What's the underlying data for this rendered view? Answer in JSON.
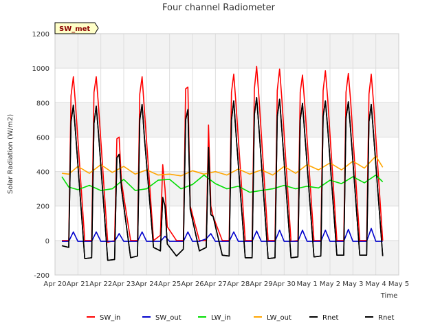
{
  "chart_data": {
    "type": "line",
    "title": "Four channel Radiometer",
    "xlabel": "Time",
    "ylabel": "Solar Radiation (W/m2)",
    "site_badge": "SW_met",
    "ylim": [
      -200,
      1200
    ],
    "xlim": [
      0,
      15
    ],
    "y_ticks": [
      -200,
      0,
      200,
      400,
      600,
      800,
      1000,
      1200
    ],
    "x_ticks": [
      {
        "pos": 0,
        "label": "Apr 20"
      },
      {
        "pos": 1,
        "label": "Apr 21"
      },
      {
        "pos": 2,
        "label": "Apr 22"
      },
      {
        "pos": 3,
        "label": "Apr 23"
      },
      {
        "pos": 4,
        "label": "Apr 24"
      },
      {
        "pos": 5,
        "label": "Apr 25"
      },
      {
        "pos": 6,
        "label": "Apr 26"
      },
      {
        "pos": 7,
        "label": "Apr 27"
      },
      {
        "pos": 8,
        "label": "Apr 28"
      },
      {
        "pos": 9,
        "label": "Apr 29"
      },
      {
        "pos": 10,
        "label": "Apr 30"
      },
      {
        "pos": 11,
        "label": "May 1"
      },
      {
        "pos": 12,
        "label": "May 2"
      },
      {
        "pos": 13,
        "label": "May 3"
      },
      {
        "pos": 14,
        "label": "May 4"
      },
      {
        "pos": 15,
        "label": "May 5"
      }
    ],
    "grid": true,
    "banded_background": true,
    "legend_position": "bottom",
    "series": [
      {
        "name": "SW_in",
        "color": "#ff0000",
        "x": [
          0.3,
          0.6,
          0.7,
          0.8,
          0.9,
          1.3,
          1.6,
          1.7,
          1.8,
          1.9,
          2.3,
          2.6,
          2.7,
          2.8,
          2.9,
          3.3,
          3.6,
          3.7,
          3.8,
          3.9,
          4.3,
          4.6,
          4.7,
          4.8,
          4.9,
          5.3,
          5.6,
          5.7,
          5.8,
          5.9,
          6.3,
          6.6,
          6.7,
          6.8,
          6.9,
          7.3,
          7.6,
          7.7,
          7.8,
          7.9,
          8.3,
          8.6,
          8.7,
          8.8,
          8.9,
          9.3,
          9.6,
          9.7,
          9.8,
          9.9,
          10.3,
          10.6,
          10.7,
          10.8,
          10.9,
          11.3,
          11.6,
          11.7,
          11.8,
          11.9,
          12.3,
          12.6,
          12.7,
          12.8,
          12.9,
          13.3,
          13.6,
          13.7,
          13.8,
          13.9,
          14.3
        ],
        "y": [
          0,
          0,
          840,
          950,
          780,
          0,
          0,
          860,
          950,
          780,
          -10,
          0,
          590,
          600,
          340,
          0,
          0,
          850,
          950,
          760,
          0,
          30,
          440,
          300,
          80,
          0,
          0,
          880,
          890,
          200,
          0,
          0,
          670,
          200,
          140,
          0,
          0,
          860,
          965,
          790,
          0,
          0,
          880,
          1010,
          830,
          0,
          0,
          870,
          995,
          820,
          -5,
          0,
          860,
          960,
          790,
          0,
          0,
          870,
          985,
          820,
          0,
          0,
          860,
          970,
          810,
          0,
          0,
          850,
          965,
          800,
          0
        ]
      },
      {
        "name": "SW_out",
        "color": "#0000cc",
        "x": [
          0.3,
          0.6,
          0.8,
          1.0,
          1.3,
          1.6,
          1.8,
          2.0,
          2.3,
          2.6,
          2.8,
          3.0,
          3.3,
          3.6,
          3.8,
          4.0,
          4.3,
          4.6,
          4.8,
          5.0,
          5.3,
          5.6,
          5.8,
          6.0,
          6.3,
          6.6,
          6.8,
          7.0,
          7.3,
          7.6,
          7.8,
          8.0,
          8.3,
          8.6,
          8.8,
          9.0,
          9.3,
          9.6,
          9.8,
          10.0,
          10.3,
          10.6,
          10.8,
          11.0,
          11.3,
          11.6,
          11.8,
          12.0,
          12.3,
          12.6,
          12.8,
          13.0,
          13.3,
          13.6,
          13.8,
          14.0,
          14.3
        ],
        "y": [
          -5,
          -5,
          50,
          -5,
          -5,
          -5,
          50,
          -5,
          -5,
          -5,
          40,
          -5,
          -5,
          -5,
          50,
          -5,
          -5,
          -5,
          25,
          -5,
          -5,
          -5,
          50,
          -5,
          -5,
          10,
          40,
          -5,
          -5,
          -5,
          50,
          -5,
          -5,
          -5,
          55,
          -5,
          -5,
          -5,
          60,
          -5,
          -5,
          -5,
          60,
          -5,
          -5,
          -5,
          60,
          -5,
          -5,
          -5,
          65,
          -5,
          -5,
          -5,
          70,
          -5,
          -5
        ]
      },
      {
        "name": "LW_in",
        "color": "#00dd00",
        "x": [
          0.3,
          0.6,
          1.0,
          1.5,
          2.0,
          2.5,
          3.0,
          3.5,
          4.0,
          4.5,
          5.0,
          5.5,
          6.0,
          6.5,
          7.0,
          7.5,
          8.0,
          8.5,
          9.0,
          9.5,
          10.0,
          10.5,
          11.0,
          11.5,
          12.0,
          12.5,
          13.0,
          13.5,
          14.0,
          14.3
        ],
        "y": [
          370,
          310,
          295,
          320,
          290,
          300,
          355,
          290,
          300,
          350,
          355,
          300,
          325,
          380,
          330,
          300,
          315,
          280,
          290,
          300,
          320,
          300,
          315,
          305,
          350,
          330,
          370,
          335,
          380,
          340
        ]
      },
      {
        "name": "LW_out",
        "color": "#ffa500",
        "x": [
          0.3,
          0.6,
          1.0,
          1.5,
          2.0,
          2.5,
          3.0,
          3.5,
          4.0,
          4.5,
          5.0,
          5.5,
          6.0,
          6.5,
          7.0,
          7.5,
          8.0,
          8.5,
          9.0,
          9.5,
          10.0,
          10.5,
          11.0,
          11.5,
          12.0,
          12.5,
          13.0,
          13.5,
          14.0,
          14.3
        ],
        "y": [
          390,
          385,
          430,
          390,
          440,
          395,
          430,
          385,
          410,
          380,
          385,
          375,
          405,
          385,
          400,
          380,
          415,
          385,
          410,
          380,
          430,
          390,
          440,
          410,
          450,
          410,
          460,
          420,
          490,
          425
        ]
      },
      {
        "name": "Rnet",
        "color": "#000000",
        "x": [
          0.3,
          0.6,
          0.7,
          0.8,
          0.9,
          1.3,
          1.6,
          1.7,
          1.8,
          1.9,
          2.3,
          2.6,
          2.7,
          2.8,
          2.9,
          3.3,
          3.6,
          3.7,
          3.8,
          3.9,
          4.3,
          4.6,
          4.7,
          4.8,
          4.9,
          5.3,
          5.6,
          5.7,
          5.8,
          5.9,
          6.3,
          6.6,
          6.7,
          6.8,
          6.9,
          7.3,
          7.6,
          7.7,
          7.8,
          7.9,
          8.3,
          8.6,
          8.7,
          8.8,
          8.9,
          9.3,
          9.6,
          9.7,
          9.8,
          9.9,
          10.3,
          10.6,
          10.7,
          10.8,
          10.9,
          11.3,
          11.6,
          11.7,
          11.8,
          11.9,
          12.3,
          12.6,
          12.7,
          12.8,
          12.9,
          13.3,
          13.6,
          13.7,
          13.8,
          13.9,
          14.3
        ],
        "y": [
          -30,
          -40,
          690,
          785,
          620,
          -105,
          -100,
          680,
          780,
          620,
          -115,
          -110,
          480,
          500,
          300,
          -100,
          -90,
          700,
          790,
          600,
          -40,
          -60,
          250,
          200,
          -20,
          -90,
          -50,
          700,
          760,
          180,
          -60,
          -40,
          540,
          150,
          140,
          -85,
          -90,
          700,
          810,
          620,
          -100,
          -100,
          730,
          830,
          650,
          -105,
          -100,
          720,
          820,
          640,
          -100,
          -95,
          700,
          795,
          620,
          -95,
          -90,
          720,
          810,
          650,
          -85,
          -85,
          710,
          805,
          640,
          -85,
          -85,
          690,
          790,
          620,
          -90
        ]
      },
      {
        "name": "Rnet",
        "color": "#000000",
        "x": [
          0.3,
          0.6,
          0.7,
          0.8,
          0.9,
          1.3,
          1.6,
          1.7,
          1.8,
          1.9,
          2.3,
          2.6,
          2.7,
          2.8,
          2.9,
          3.3,
          3.6,
          3.7,
          3.8,
          3.9,
          4.3,
          4.6,
          4.7,
          4.8,
          4.9,
          5.3,
          5.6,
          5.7,
          5.8,
          5.9,
          6.3,
          6.6,
          6.7,
          6.8,
          6.9,
          7.3,
          7.6,
          7.7,
          7.8,
          7.9,
          8.3,
          8.6,
          8.7,
          8.8,
          8.9,
          9.3,
          9.6,
          9.7,
          9.8,
          9.9,
          10.3,
          10.6,
          10.7,
          10.8,
          10.9,
          11.3,
          11.6,
          11.7,
          11.8,
          11.9,
          12.3,
          12.6,
          12.7,
          12.8,
          12.9,
          13.3,
          13.6,
          13.7,
          13.8,
          13.9,
          14.3
        ],
        "y": [
          -30,
          -40,
          690,
          785,
          620,
          -105,
          -100,
          680,
          780,
          620,
          -115,
          -110,
          480,
          500,
          300,
          -100,
          -90,
          700,
          790,
          600,
          -40,
          -60,
          250,
          200,
          -20,
          -90,
          -50,
          700,
          760,
          180,
          -60,
          -40,
          540,
          150,
          140,
          -85,
          -90,
          700,
          810,
          620,
          -100,
          -100,
          730,
          830,
          650,
          -105,
          -100,
          720,
          820,
          640,
          -100,
          -95,
          700,
          795,
          620,
          -95,
          -90,
          720,
          810,
          650,
          -85,
          -85,
          710,
          805,
          640,
          -85,
          -85,
          690,
          790,
          620,
          -90
        ]
      }
    ]
  }
}
